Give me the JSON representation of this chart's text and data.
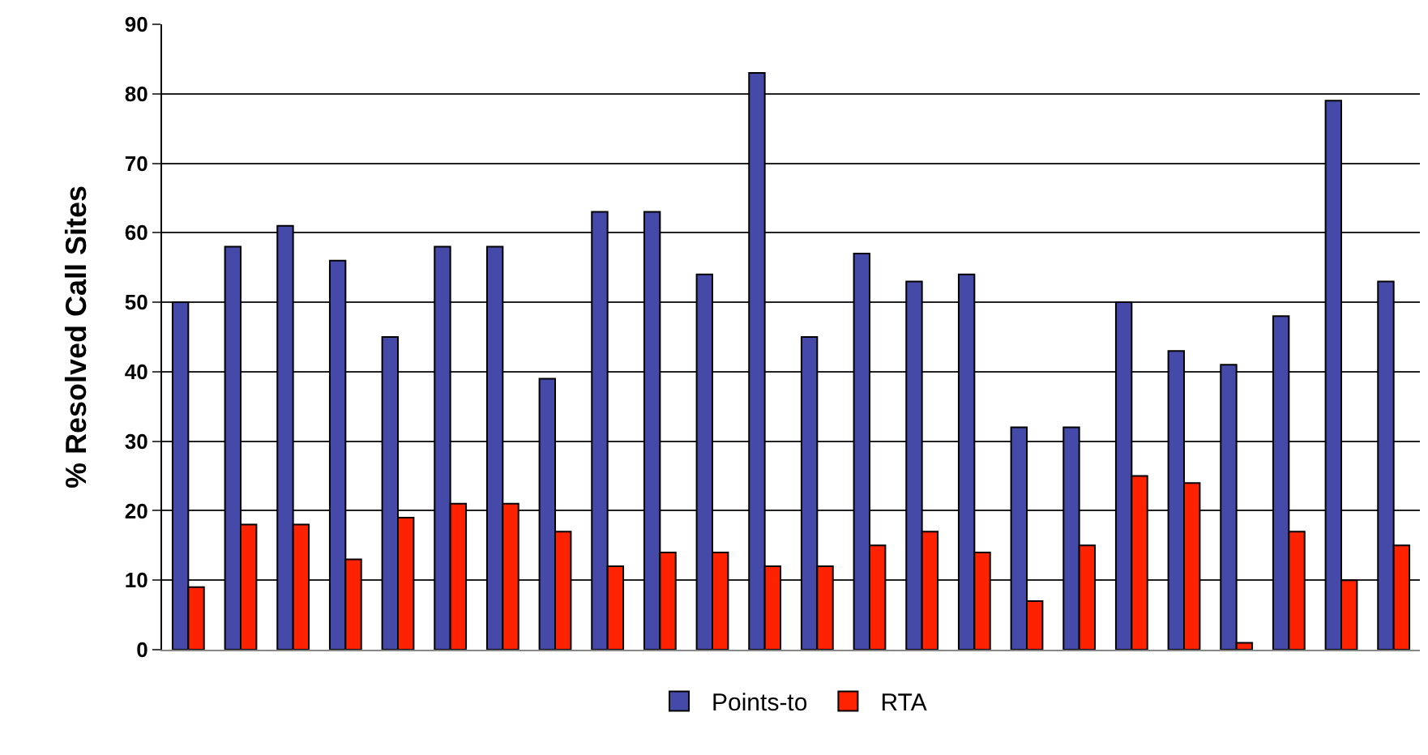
{
  "chart_data": {
    "type": "bar",
    "ylabel": "% Resolved Call Sites",
    "categories": [
      null,
      null,
      null,
      null,
      null,
      null,
      null,
      null,
      null,
      null,
      null,
      null,
      null,
      null,
      null,
      null,
      null,
      null,
      null,
      null,
      null,
      null,
      null,
      null
    ],
    "series": [
      {
        "name": "Points-to",
        "color": "#454aa8",
        "values": [
          50,
          58,
          61,
          56,
          45,
          58,
          58,
          39,
          63,
          63,
          54,
          83,
          45,
          57,
          53,
          54,
          32,
          32,
          50,
          43,
          41,
          48,
          79,
          53
        ]
      },
      {
        "name": "RTA",
        "color": "#ff2200",
        "values": [
          9,
          18,
          18,
          13,
          19,
          21,
          21,
          17,
          12,
          14,
          14,
          12,
          12,
          15,
          17,
          14,
          7,
          15,
          25,
          24,
          1,
          17,
          10,
          15
        ]
      }
    ],
    "ylim": [
      0,
      90
    ],
    "yticks": [
      0,
      10,
      20,
      30,
      40,
      50,
      60,
      70,
      80,
      90
    ],
    "grid": "y",
    "legend": "bottom"
  }
}
